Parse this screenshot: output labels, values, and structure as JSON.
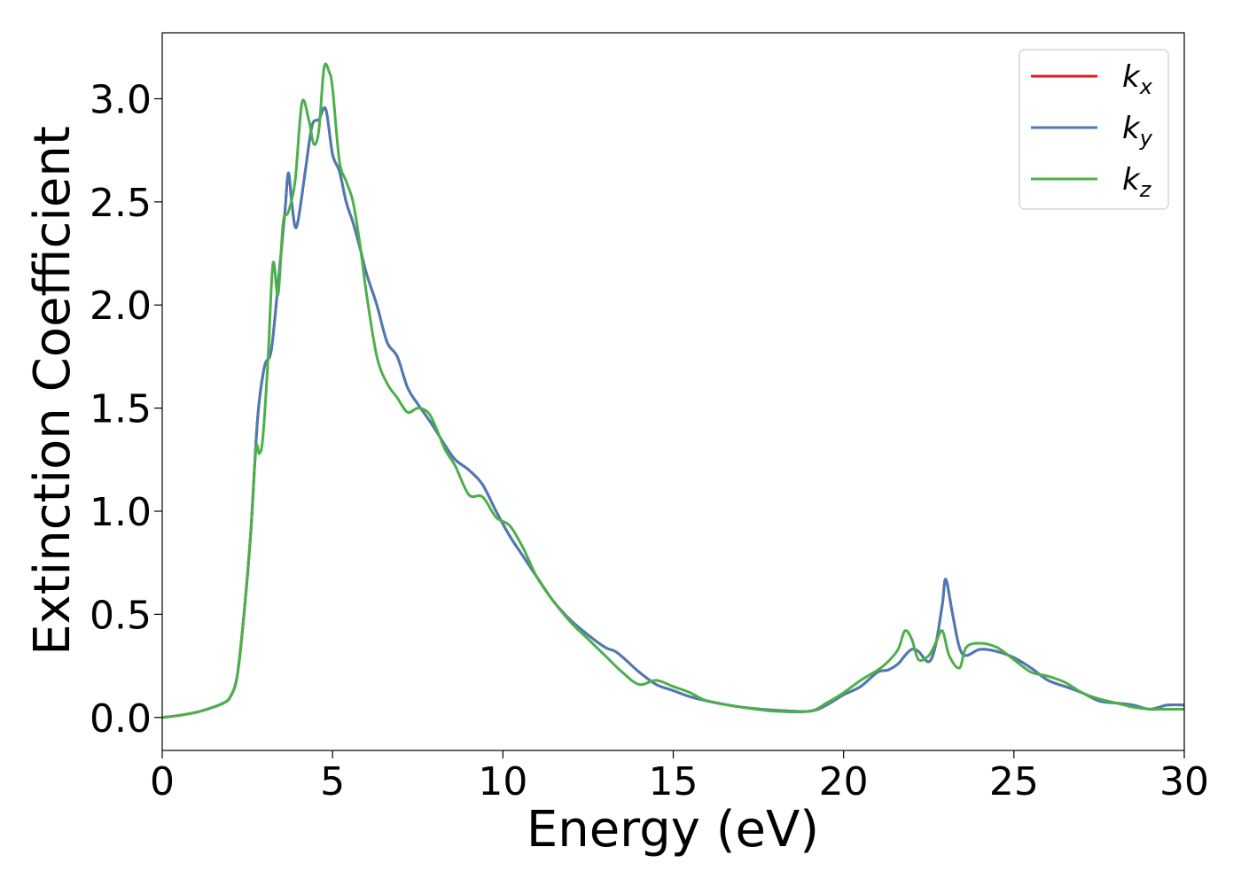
{
  "chart_data": {
    "type": "line",
    "xlabel": "Energy (eV)",
    "ylabel": "Extinction Coefficient",
    "xlim": [
      0,
      30
    ],
    "ylim": [
      -0.16,
      3.32
    ],
    "xticks": [
      0,
      5,
      10,
      15,
      20,
      25,
      30
    ],
    "xtick_labels": [
      "0",
      "5",
      "10",
      "15",
      "20",
      "25",
      "30"
    ],
    "yticks": [
      0.0,
      0.5,
      1.0,
      1.5,
      2.0,
      2.5,
      3.0
    ],
    "ytick_labels": [
      "0.0",
      "0.5",
      "1.0",
      "1.5",
      "2.0",
      "2.5",
      "3.0"
    ],
    "grid": false,
    "legend_position": "top-right",
    "series": [
      {
        "name": "k_x",
        "label_main": "k",
        "label_sub": "x",
        "color": "#e41a1c",
        "x": [
          0,
          0.5,
          1.0,
          1.5,
          1.8,
          2.0,
          2.2,
          2.4,
          2.6,
          2.8,
          3.0,
          3.2,
          3.4,
          3.6,
          3.7,
          3.8,
          3.9,
          4.0,
          4.2,
          4.4,
          4.6,
          4.8,
          5.0,
          5.2,
          5.4,
          5.6,
          5.8,
          6.0,
          6.3,
          6.6,
          6.9,
          7.2,
          7.5,
          7.8,
          8.0,
          8.3,
          8.6,
          9.0,
          9.4,
          9.8,
          10.2,
          10.6,
          11.0,
          11.5,
          12.0,
          12.5,
          13.0,
          13.3,
          13.6,
          14.0,
          14.5,
          15.0,
          15.5,
          16.0,
          17.0,
          18.0,
          19.0,
          19.5,
          20.0,
          20.5,
          21.0,
          21.3,
          21.6,
          21.8,
          22.0,
          22.2,
          22.5,
          22.7,
          22.9,
          23.0,
          23.2,
          23.4,
          23.6,
          24.0,
          24.5,
          25.0,
          25.5,
          26.0,
          26.5,
          27.0,
          27.5,
          28.0,
          28.5,
          29.0,
          29.5,
          30.0
        ],
        "y": [
          0.0,
          0.01,
          0.025,
          0.05,
          0.07,
          0.1,
          0.2,
          0.5,
          0.9,
          1.45,
          1.7,
          1.78,
          2.1,
          2.45,
          2.64,
          2.5,
          2.38,
          2.42,
          2.65,
          2.87,
          2.9,
          2.95,
          2.73,
          2.65,
          2.5,
          2.4,
          2.28,
          2.15,
          2.0,
          1.82,
          1.75,
          1.6,
          1.52,
          1.45,
          1.4,
          1.32,
          1.25,
          1.2,
          1.13,
          1.0,
          0.88,
          0.78,
          0.68,
          0.56,
          0.47,
          0.4,
          0.34,
          0.32,
          0.28,
          0.22,
          0.16,
          0.13,
          0.1,
          0.08,
          0.05,
          0.035,
          0.03,
          0.06,
          0.11,
          0.15,
          0.22,
          0.23,
          0.26,
          0.3,
          0.33,
          0.32,
          0.27,
          0.35,
          0.55,
          0.67,
          0.5,
          0.34,
          0.3,
          0.33,
          0.32,
          0.29,
          0.24,
          0.18,
          0.15,
          0.12,
          0.08,
          0.07,
          0.06,
          0.04,
          0.06,
          0.06
        ]
      },
      {
        "name": "k_y",
        "label_main": "k",
        "label_sub": "y",
        "color": "#4b7bb5",
        "x": [
          0,
          0.5,
          1.0,
          1.5,
          1.8,
          2.0,
          2.2,
          2.4,
          2.6,
          2.8,
          3.0,
          3.2,
          3.4,
          3.6,
          3.7,
          3.8,
          3.9,
          4.0,
          4.2,
          4.4,
          4.6,
          4.8,
          5.0,
          5.2,
          5.4,
          5.6,
          5.8,
          6.0,
          6.3,
          6.6,
          6.9,
          7.2,
          7.5,
          7.8,
          8.0,
          8.3,
          8.6,
          9.0,
          9.4,
          9.8,
          10.2,
          10.6,
          11.0,
          11.5,
          12.0,
          12.5,
          13.0,
          13.3,
          13.6,
          14.0,
          14.5,
          15.0,
          15.5,
          16.0,
          17.0,
          18.0,
          19.0,
          19.5,
          20.0,
          20.5,
          21.0,
          21.3,
          21.6,
          21.8,
          22.0,
          22.2,
          22.5,
          22.7,
          22.9,
          23.0,
          23.2,
          23.4,
          23.6,
          24.0,
          24.5,
          25.0,
          25.5,
          26.0,
          26.5,
          27.0,
          27.5,
          28.0,
          28.5,
          29.0,
          29.5,
          30.0
        ],
        "y": [
          0.0,
          0.01,
          0.025,
          0.05,
          0.07,
          0.1,
          0.2,
          0.5,
          0.9,
          1.45,
          1.7,
          1.78,
          2.1,
          2.45,
          2.64,
          2.5,
          2.38,
          2.42,
          2.65,
          2.87,
          2.9,
          2.95,
          2.73,
          2.65,
          2.5,
          2.4,
          2.28,
          2.15,
          2.0,
          1.82,
          1.75,
          1.6,
          1.52,
          1.45,
          1.4,
          1.32,
          1.25,
          1.2,
          1.13,
          1.0,
          0.88,
          0.78,
          0.68,
          0.56,
          0.47,
          0.4,
          0.34,
          0.32,
          0.28,
          0.22,
          0.16,
          0.13,
          0.1,
          0.08,
          0.05,
          0.035,
          0.03,
          0.06,
          0.11,
          0.15,
          0.22,
          0.23,
          0.26,
          0.3,
          0.33,
          0.32,
          0.27,
          0.35,
          0.55,
          0.67,
          0.5,
          0.34,
          0.3,
          0.33,
          0.32,
          0.29,
          0.24,
          0.18,
          0.15,
          0.12,
          0.08,
          0.07,
          0.06,
          0.04,
          0.06,
          0.06
        ]
      },
      {
        "name": "k_z",
        "label_main": "k",
        "label_sub": "z",
        "color": "#4daf4a",
        "x": [
          0,
          0.5,
          1.0,
          1.5,
          1.8,
          2.0,
          2.2,
          2.4,
          2.6,
          2.75,
          2.85,
          2.95,
          3.1,
          3.25,
          3.4,
          3.55,
          3.7,
          3.9,
          4.1,
          4.3,
          4.45,
          4.6,
          4.75,
          4.9,
          5.0,
          5.2,
          5.4,
          5.6,
          5.8,
          6.0,
          6.3,
          6.6,
          6.9,
          7.2,
          7.5,
          7.8,
          8.0,
          8.3,
          8.6,
          9.0,
          9.4,
          9.8,
          10.2,
          10.6,
          11.0,
          11.5,
          12.0,
          12.5,
          13.0,
          13.5,
          14.0,
          14.5,
          15.0,
          15.5,
          16.0,
          17.0,
          18.0,
          19.0,
          19.5,
          20.0,
          20.5,
          21.0,
          21.3,
          21.6,
          21.8,
          22.0,
          22.2,
          22.5,
          22.7,
          22.9,
          23.1,
          23.4,
          23.6,
          24.0,
          24.5,
          25.0,
          25.5,
          26.0,
          26.5,
          27.0,
          27.5,
          28.0,
          28.5,
          29.0,
          29.5,
          30.0
        ],
        "y": [
          0.0,
          0.01,
          0.025,
          0.05,
          0.07,
          0.1,
          0.2,
          0.5,
          0.9,
          1.3,
          1.28,
          1.35,
          1.72,
          2.2,
          2.05,
          2.4,
          2.45,
          2.6,
          2.98,
          2.9,
          2.78,
          2.85,
          3.15,
          3.13,
          3.05,
          2.7,
          2.6,
          2.5,
          2.3,
          2.05,
          1.75,
          1.62,
          1.55,
          1.48,
          1.5,
          1.48,
          1.42,
          1.3,
          1.22,
          1.08,
          1.07,
          0.97,
          0.93,
          0.82,
          0.68,
          0.56,
          0.46,
          0.38,
          0.3,
          0.22,
          0.16,
          0.18,
          0.15,
          0.12,
          0.08,
          0.05,
          0.03,
          0.03,
          0.07,
          0.12,
          0.18,
          0.23,
          0.27,
          0.33,
          0.42,
          0.38,
          0.28,
          0.3,
          0.36,
          0.42,
          0.3,
          0.24,
          0.34,
          0.36,
          0.34,
          0.28,
          0.22,
          0.2,
          0.17,
          0.12,
          0.09,
          0.07,
          0.05,
          0.04,
          0.04,
          0.04
        ]
      }
    ]
  }
}
